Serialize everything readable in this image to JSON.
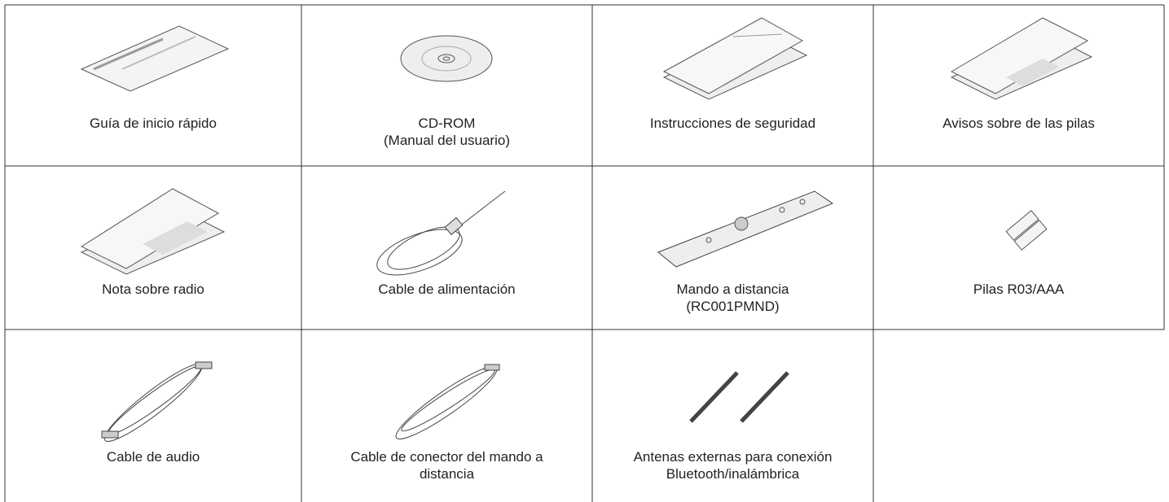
{
  "items": [
    {
      "lines": [
        "Guía de inicio rápido"
      ]
    },
    {
      "lines": [
        "CD-ROM",
        "(Manual del usuario)"
      ]
    },
    {
      "lines": [
        "Instrucciones de seguridad"
      ]
    },
    {
      "lines": [
        "Avisos sobre de las pilas"
      ]
    },
    {
      "lines": [
        "Nota sobre radio"
      ]
    },
    {
      "lines": [
        "Cable de alimentación"
      ]
    },
    {
      "lines": [
        "Mando a distancia",
        "(RC001PMND)"
      ]
    },
    {
      "lines": [
        "Pilas R03/AAA"
      ]
    },
    {
      "lines": [
        "Cable de audio"
      ]
    },
    {
      "lines": [
        "Cable de conector del mando a",
        "distancia"
      ]
    },
    {
      "lines": [
        "Antenas externas para conexión",
        "Bluetooth/inalámbrica"
      ]
    }
  ]
}
